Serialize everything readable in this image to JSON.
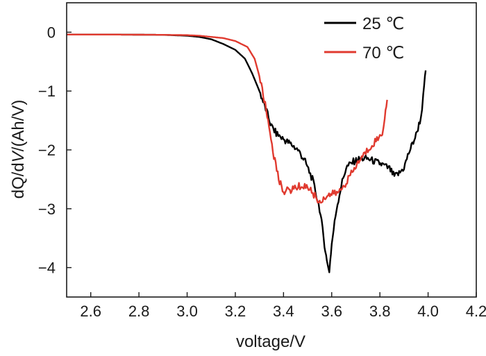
{
  "chart_data": {
    "type": "line",
    "title": "",
    "xlabel": "voltage/V",
    "ylabel": "dQ/dV/(Ah/V)",
    "ylabel_parts": [
      "dQ/d",
      "V",
      "/(Ah/V)"
    ],
    "xlim": [
      2.5,
      4.2
    ],
    "ylim": [
      -4.5,
      0.5
    ],
    "xticks": [
      2.6,
      2.8,
      3.0,
      3.2,
      3.4,
      3.6,
      3.8,
      4.0,
      4.2
    ],
    "xtick_labels": [
      "2.6",
      "2.8",
      "3.0",
      "3.2",
      "3.4",
      "3.6",
      "3.8",
      "4.0",
      "4.2"
    ],
    "yticks": [
      0,
      -1,
      -2,
      -3,
      -4
    ],
    "ytick_labels": [
      "0",
      "−1",
      "−2",
      "−3",
      "−4"
    ],
    "grid": false,
    "legend_position": "top-right",
    "series": [
      {
        "name": "25 ℃",
        "color": "#000000",
        "points": [
          [
            2.5,
            -0.04
          ],
          [
            2.7,
            -0.04
          ],
          [
            2.9,
            -0.045
          ],
          [
            3.0,
            -0.06
          ],
          [
            3.05,
            -0.08
          ],
          [
            3.1,
            -0.12
          ],
          [
            3.15,
            -0.2
          ],
          [
            3.2,
            -0.3
          ],
          [
            3.24,
            -0.45
          ],
          [
            3.27,
            -0.7
          ],
          [
            3.3,
            -1.0
          ],
          [
            3.33,
            -1.35
          ],
          [
            3.35,
            -1.6
          ],
          [
            3.37,
            -1.72
          ],
          [
            3.4,
            -1.82
          ],
          [
            3.43,
            -1.9
          ],
          [
            3.46,
            -2.0
          ],
          [
            3.49,
            -2.2
          ],
          [
            3.52,
            -2.5
          ],
          [
            3.55,
            -3.0
          ],
          [
            3.57,
            -3.6
          ],
          [
            3.58,
            -3.9
          ],
          [
            3.59,
            -4.05
          ],
          [
            3.6,
            -3.6
          ],
          [
            3.62,
            -3.0
          ],
          [
            3.64,
            -2.6
          ],
          [
            3.66,
            -2.3
          ],
          [
            3.69,
            -2.2
          ],
          [
            3.72,
            -2.15
          ],
          [
            3.75,
            -2.15
          ],
          [
            3.78,
            -2.2
          ],
          [
            3.81,
            -2.25
          ],
          [
            3.84,
            -2.32
          ],
          [
            3.86,
            -2.45
          ],
          [
            3.88,
            -2.4
          ],
          [
            3.9,
            -2.3
          ],
          [
            3.92,
            -2.05
          ],
          [
            3.95,
            -1.75
          ],
          [
            3.97,
            -1.45
          ],
          [
            3.98,
            -1.1
          ],
          [
            3.99,
            -0.65
          ]
        ]
      },
      {
        "name": "70 ℃",
        "color": "#e03a2f",
        "points": [
          [
            2.5,
            -0.04
          ],
          [
            2.7,
            -0.04
          ],
          [
            2.9,
            -0.045
          ],
          [
            3.0,
            -0.05
          ],
          [
            3.05,
            -0.06
          ],
          [
            3.1,
            -0.08
          ],
          [
            3.15,
            -0.1
          ],
          [
            3.2,
            -0.15
          ],
          [
            3.25,
            -0.25
          ],
          [
            3.28,
            -0.45
          ],
          [
            3.3,
            -0.75
          ],
          [
            3.32,
            -1.15
          ],
          [
            3.34,
            -1.6
          ],
          [
            3.36,
            -2.1
          ],
          [
            3.38,
            -2.5
          ],
          [
            3.4,
            -2.7
          ],
          [
            3.43,
            -2.68
          ],
          [
            3.46,
            -2.62
          ],
          [
            3.5,
            -2.62
          ],
          [
            3.53,
            -2.78
          ],
          [
            3.55,
            -2.9
          ],
          [
            3.57,
            -2.8
          ],
          [
            3.6,
            -2.75
          ],
          [
            3.63,
            -2.72
          ],
          [
            3.66,
            -2.55
          ],
          [
            3.69,
            -2.35
          ],
          [
            3.72,
            -2.15
          ],
          [
            3.75,
            -2.0
          ],
          [
            3.78,
            -1.85
          ],
          [
            3.8,
            -1.78
          ],
          [
            3.81,
            -1.7
          ],
          [
            3.82,
            -1.45
          ],
          [
            3.83,
            -1.15
          ]
        ]
      }
    ]
  }
}
